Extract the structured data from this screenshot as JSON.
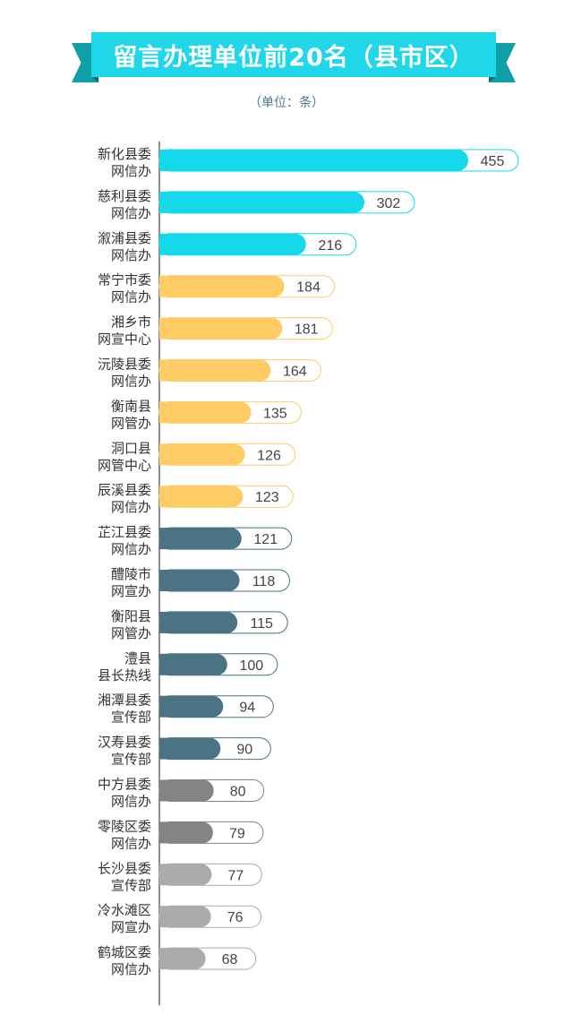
{
  "header": {
    "title": "留言办理单位前20名（县市区）",
    "unit_note": "（单位：条）"
  },
  "colors": {
    "cyan": "#15d8ea",
    "yellow": "#fecb65",
    "slate": "#4a7384",
    "dark_gray": "#848484",
    "light_gray": "#ababab",
    "ribbon": "#1fd7e8",
    "ribbon_tail": "#0f9fa8"
  },
  "chart_data": {
    "type": "bar",
    "orientation": "horizontal",
    "unit": "条",
    "categories": [
      [
        "新化县委",
        "网信办"
      ],
      [
        "慈利县委",
        "网信办"
      ],
      [
        "溆浦县委",
        "网信办"
      ],
      [
        "常宁市委",
        "网信办"
      ],
      [
        "湘乡市",
        "网宣中心"
      ],
      [
        "沅陵县委",
        "网信办"
      ],
      [
        "衡南县",
        "网管办"
      ],
      [
        "洞口县",
        "网管中心"
      ],
      [
        "辰溪县委",
        "网信办"
      ],
      [
        "芷江县委",
        "网信办"
      ],
      [
        "醴陵市",
        "网宣办"
      ],
      [
        "衡阳县",
        "网管办"
      ],
      [
        "澧县",
        "县长热线"
      ],
      [
        "湘潭县委",
        "宣传部"
      ],
      [
        "汉寿县委",
        "宣传部"
      ],
      [
        "中方县委",
        "网信办"
      ],
      [
        "零陵区委",
        "网信办"
      ],
      [
        "长沙县委",
        "宣传部"
      ],
      [
        "冷水滩区",
        "网宣办"
      ],
      [
        "鹤城区委",
        "网信办"
      ]
    ],
    "values": [
      455,
      302,
      216,
      184,
      181,
      164,
      135,
      126,
      123,
      121,
      118,
      115,
      100,
      94,
      90,
      80,
      79,
      77,
      76,
      68
    ],
    "bar_color_keys": [
      "cyan",
      "cyan",
      "cyan",
      "yellow",
      "yellow",
      "yellow",
      "yellow",
      "yellow",
      "yellow",
      "slate",
      "slate",
      "slate",
      "slate",
      "slate",
      "slate",
      "dark_gray",
      "dark_gray",
      "light_gray",
      "light_gray",
      "light_gray"
    ]
  }
}
